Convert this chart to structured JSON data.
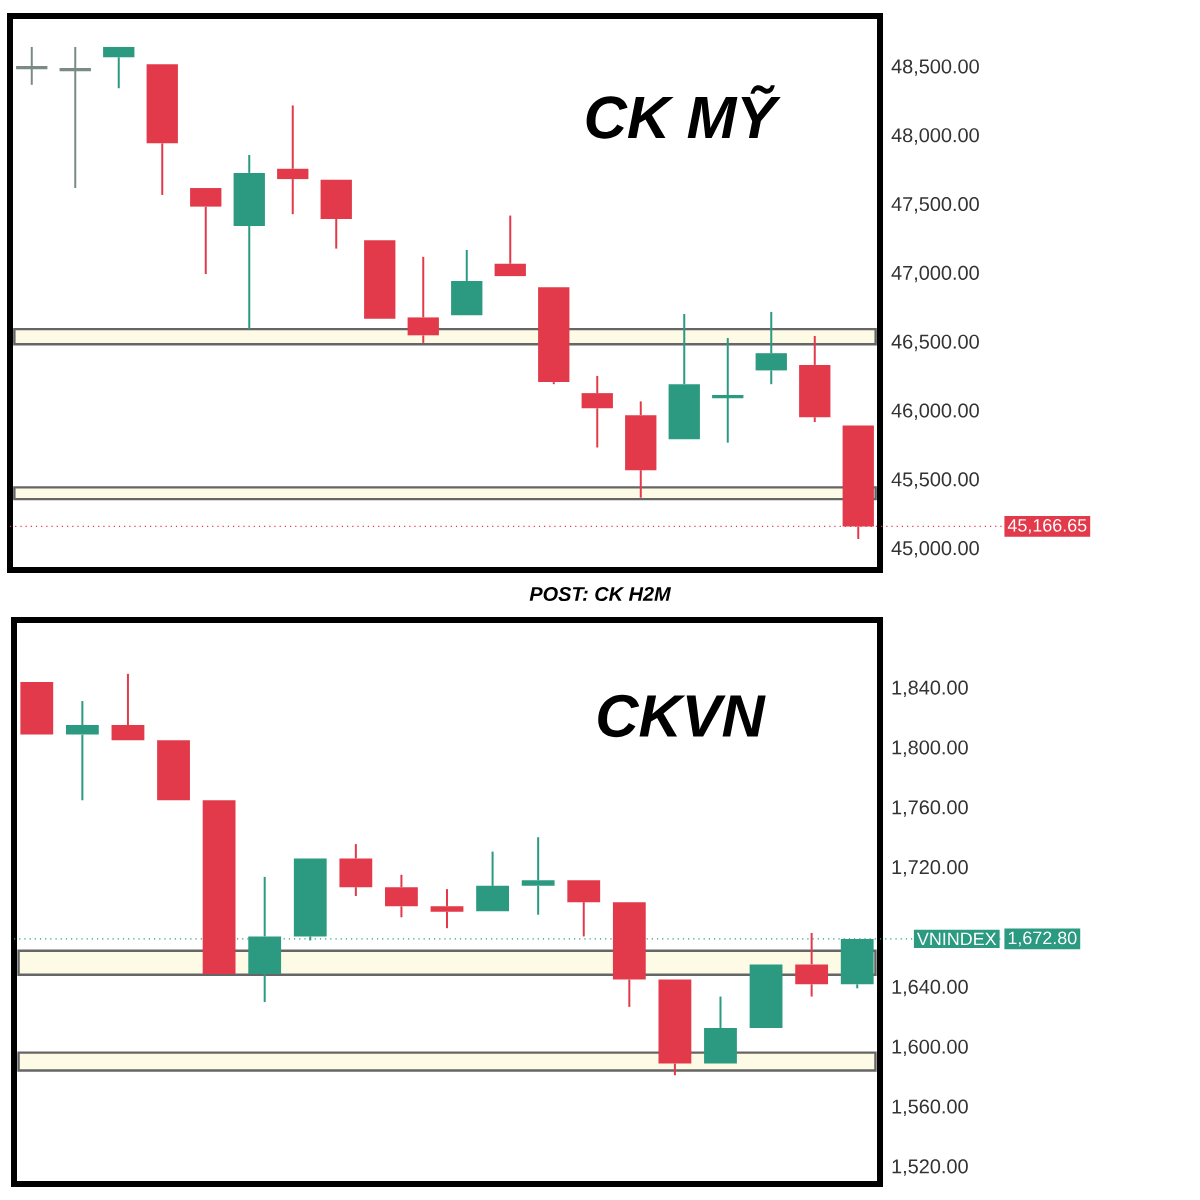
{
  "chart_data": [
    {
      "type": "candlestick",
      "title": "CK MỸ",
      "categories": [
        null,
        null,
        null,
        null,
        null,
        null,
        null,
        null,
        null,
        null,
        null,
        null,
        null,
        null,
        null,
        null,
        null,
        null,
        null,
        null
      ],
      "ohlc": [
        [
          48500,
          48650,
          48375,
          48500
        ],
        [
          48485,
          48650,
          47625,
          48485
        ],
        [
          48575,
          48650,
          48350,
          48650
        ],
        [
          48525,
          48525,
          47575,
          47950
        ],
        [
          47625,
          47625,
          47000,
          47490
        ],
        [
          47350,
          47865,
          46600,
          47735
        ],
        [
          47765,
          48225,
          47435,
          47690
        ],
        [
          47685,
          47685,
          47185,
          47400
        ],
        [
          47245,
          47245,
          46675,
          46675
        ],
        [
          46685,
          47125,
          46500,
          46555
        ],
        [
          46700,
          47175,
          46700,
          46950
        ],
        [
          47075,
          47425,
          46985,
          46985
        ],
        [
          46905,
          46905,
          46200,
          46215
        ],
        [
          46135,
          46260,
          45740,
          46025
        ],
        [
          45975,
          46075,
          45375,
          45575
        ],
        [
          45800,
          46710,
          45800,
          46200
        ],
        [
          46110,
          46535,
          45775,
          46110
        ],
        [
          46300,
          46725,
          46200,
          46425
        ],
        [
          46340,
          46550,
          45925,
          45960
        ],
        [
          45900,
          45900,
          45075,
          45166.65
        ]
      ],
      "colors": [
        "#7a8a84",
        "#7a8a84",
        "#2b9a80",
        "#e23a4a",
        "#e23a4a",
        "#2b9a80",
        "#e23a4a",
        "#e23a4a",
        "#e23a4a",
        "#e23a4a",
        "#2b9a80",
        "#e23a4a",
        "#e23a4a",
        "#e23a4a",
        "#e23a4a",
        "#2b9a80",
        "#2b9a80",
        "#2b9a80",
        "#e23a4a",
        "#e23a4a"
      ],
      "ylim": [
        44850,
        48875
      ],
      "yticks": [
        {
          "value": 45000,
          "label": "45,000.00"
        },
        {
          "value": 45500,
          "label": "45,500.00"
        },
        {
          "value": 46000,
          "label": "46,000.00"
        },
        {
          "value": 46500,
          "label": "46,500.00"
        },
        {
          "value": 47000,
          "label": "47,000.00"
        },
        {
          "value": 47500,
          "label": "47,500.00"
        },
        {
          "value": 48000,
          "label": "48,000.00"
        },
        {
          "value": 48500,
          "label": "48,500.00"
        }
      ],
      "tick_labels": "y",
      "bands": [
        {
          "axis": "y",
          "from": 46490,
          "to": 46600,
          "color": "#fdfbe6"
        },
        {
          "axis": "y",
          "from": 45365,
          "to": 45450,
          "color": "#fdfbe6"
        }
      ],
      "ref_lines": [
        {
          "axis": "y",
          "value": 45166.65,
          "label": "45,166.65",
          "color": "#e23a4a",
          "line_style": "dotted"
        }
      ],
      "annotations": [
        "POST: CK H2M"
      ]
    },
    {
      "type": "candlestick",
      "title": "CKVN",
      "categories": [
        null,
        null,
        null,
        null,
        null,
        null,
        null,
        null,
        null,
        null,
        null,
        null,
        null,
        null,
        null,
        null,
        null,
        null,
        null
      ],
      "ohlc": [
        [
          1844.6,
          1844.6,
          1809.4,
          1809.4
        ],
        [
          1809.4,
          1831.8,
          1765.5,
          1815.8
        ],
        [
          1815.8,
          1850,
          1805.7,
          1805.7
        ],
        [
          1805.7,
          1805.7,
          1765.5,
          1765.5
        ],
        [
          1765.5,
          1765.5,
          1649.4,
          1649.4
        ],
        [
          1649.4,
          1714.3,
          1630.6,
          1674.5
        ],
        [
          1674.5,
          1726.6,
          1671.8,
          1726.6
        ],
        [
          1726.6,
          1736.2,
          1701.5,
          1707.4
        ],
        [
          1707.4,
          1715.7,
          1687.3,
          1694.6
        ],
        [
          1694.6,
          1706.1,
          1680,
          1691
        ],
        [
          1691.4,
          1731.2,
          1691.4,
          1708.3
        ],
        [
          1708.3,
          1740.8,
          1689,
          1712
        ],
        [
          1712,
          1712,
          1674.5,
          1697.4
        ],
        [
          1697.4,
          1697.4,
          1627.4,
          1645.7
        ],
        [
          1645.7,
          1645.7,
          1581.7,
          1589.5
        ],
        [
          1589.5,
          1634.3,
          1589.5,
          1613.3
        ],
        [
          1613.3,
          1655.8,
          1613.3,
          1655.8
        ],
        [
          1655.8,
          1676.8,
          1634.3,
          1642.5
        ],
        [
          1642.5,
          1672.8,
          1639.8,
          1672.8
        ]
      ],
      "colors": [
        "#e23a4a",
        "#2b9a80",
        "#e23a4a",
        "#e23a4a",
        "#e23a4a",
        "#2b9a80",
        "#2b9a80",
        "#e23a4a",
        "#e23a4a",
        "#e23a4a",
        "#2b9a80",
        "#2b9a80",
        "#e23a4a",
        "#e23a4a",
        "#e23a4a",
        "#2b9a80",
        "#2b9a80",
        "#e23a4a",
        "#2b9a80"
      ],
      "ylim": [
        1509,
        1886
      ],
      "yticks": [
        {
          "value": 1520,
          "label": "1,520.00"
        },
        {
          "value": 1560,
          "label": "1,560.00"
        },
        {
          "value": 1600,
          "label": "1,600.00"
        },
        {
          "value": 1640,
          "label": "1,640.00"
        },
        {
          "value": 1720,
          "label": "1,720.00"
        },
        {
          "value": 1760,
          "label": "1,760.00"
        },
        {
          "value": 1800,
          "label": "1,800.00"
        },
        {
          "value": 1840,
          "label": "1,840.00"
        }
      ],
      "tick_labels": "y",
      "bands": [
        {
          "axis": "y",
          "from": 1648.9,
          "to": 1664.9,
          "color": "#fdfbe6"
        },
        {
          "axis": "y",
          "from": 1584.9,
          "to": 1596.8,
          "color": "#fdfbe6"
        }
      ],
      "ref_lines": [
        {
          "axis": "y",
          "value": 1672.8,
          "label": "1,672.80",
          "color": "#2b9a80",
          "line_style": "dotted"
        }
      ],
      "annotations": [
        "VNINDEX"
      ]
    }
  ]
}
